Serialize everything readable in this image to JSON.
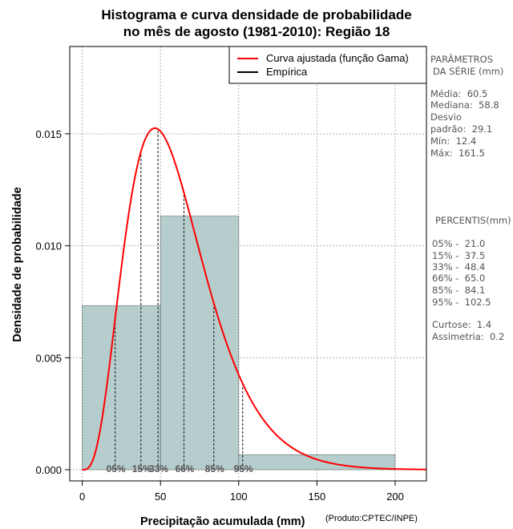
{
  "title_line1": "Histograma e curva densidade de probabilidade",
  "title_line2": "no mês de agosto (1981-2010): Região 18",
  "credit": "(Produto:CPTEC/INPE)",
  "side_panel": {
    "params_header_1": "PARÂMETROS",
    "params_header_2": "DA SÉRIE (mm)",
    "mean": "Média:  60.5",
    "median": "Mediana:  58.8",
    "sd_1": "Desvio",
    "sd_2": "padrão:  29.1",
    "min": "Mín:  12.4",
    "max": "Máx:  161.5",
    "percentis_header": "PERCENTIS(mm)",
    "p05": "05% -  21.0",
    "p15": "15% -  37.5",
    "p33": "33% -  48.4",
    "p66": "66% -  65.0",
    "p85": "85% -  84.1",
    "p95": "95% -  102.5",
    "kurtosis": "Curtose:  1.4",
    "skewness": "Assimetria:  0.2"
  },
  "chart_data": {
    "type": "histogram",
    "xlabel": "Precipitação acumulada (mm)",
    "ylabel": "Densidade de probabilidade",
    "xlim": [
      -8,
      220
    ],
    "ylim": [
      -0.0005,
      0.0189
    ],
    "x_ticks": [
      0,
      50,
      100,
      150,
      200
    ],
    "y_ticks": [
      0.0,
      0.005,
      0.01,
      0.015
    ],
    "y_tick_labels": [
      "0.000",
      "0.005",
      "0.010",
      "0.015"
    ],
    "grid": true,
    "bins": [
      {
        "from": 0,
        "to": 50,
        "density": 0.00733
      },
      {
        "from": 50,
        "to": 100,
        "density": 0.01133
      },
      {
        "from": 100,
        "to": 200,
        "density": 0.00067
      }
    ],
    "gamma_fit": {
      "shape": 4.32,
      "scale": 14.0
    },
    "percentiles": [
      {
        "label": "05%",
        "value": 21.0
      },
      {
        "label": "15%",
        "value": 37.5
      },
      {
        "label": "33%",
        "value": 48.4
      },
      {
        "label": "66%",
        "value": 65.0
      },
      {
        "label": "85%",
        "value": 84.1
      },
      {
        "label": "95%",
        "value": 102.5
      }
    ],
    "legend": {
      "placement": "top-right",
      "entries": [
        {
          "label": "Curva ajustada (função Gama)",
          "color": "#ff0000"
        },
        {
          "label": "Empírica",
          "color": "#000000"
        }
      ]
    },
    "colors": {
      "bar_fill": "#b5cdcc",
      "curve": "#ff0000"
    }
  }
}
